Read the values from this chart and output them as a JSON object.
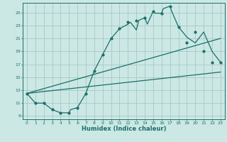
{
  "xlabel": "Humidex (Indice chaleur)",
  "bg_color": "#cce8e4",
  "grid_color": "#aacccc",
  "line_color": "#1a6e6a",
  "xlim": [
    -0.5,
    23.5
  ],
  "ylim": [
    8.5,
    26.5
  ],
  "xticks": [
    0,
    1,
    2,
    3,
    4,
    5,
    6,
    7,
    8,
    9,
    10,
    11,
    12,
    13,
    14,
    15,
    16,
    17,
    18,
    19,
    20,
    21,
    22,
    23
  ],
  "yticks": [
    9,
    11,
    13,
    15,
    17,
    19,
    21,
    23,
    25
  ],
  "curve1_x": [
    0,
    1,
    2,
    3,
    4,
    5,
    5.2,
    6,
    7,
    8,
    9,
    10,
    11,
    12,
    12.3,
    13,
    13.3,
    14,
    14.3,
    15,
    15.2,
    16,
    16.2,
    17,
    17.2,
    18,
    19,
    20,
    21,
    22,
    23
  ],
  "curve1_y": [
    12.5,
    11,
    11,
    10,
    9.5,
    9.5,
    10,
    10.3,
    12.5,
    16,
    18.5,
    21,
    22.5,
    23.2,
    23.5,
    22.3,
    23.8,
    24.2,
    23.2,
    25.2,
    24.9,
    24.9,
    25.6,
    26.0,
    25.2,
    22.8,
    21.2,
    20.3,
    22.0,
    19.0,
    17.3
  ],
  "line2_x": [
    0,
    23
  ],
  "line2_y": [
    12.5,
    15.8
  ],
  "line3_x": [
    0,
    23
  ],
  "line3_y": [
    12.5,
    21.0
  ],
  "marker_x": [
    0,
    1,
    2,
    3,
    4,
    5,
    6,
    7,
    8,
    9,
    10,
    11,
    12,
    13,
    14,
    15,
    16,
    17,
    18,
    19,
    20,
    21,
    22,
    23
  ],
  "marker_y": [
    12.5,
    11.0,
    11.0,
    10.0,
    9.5,
    9.5,
    10.3,
    12.5,
    16.0,
    18.5,
    21.0,
    22.5,
    23.5,
    23.8,
    24.2,
    25.2,
    24.9,
    26.0,
    22.8,
    20.3,
    22.0,
    19.0,
    17.3,
    17.3
  ]
}
